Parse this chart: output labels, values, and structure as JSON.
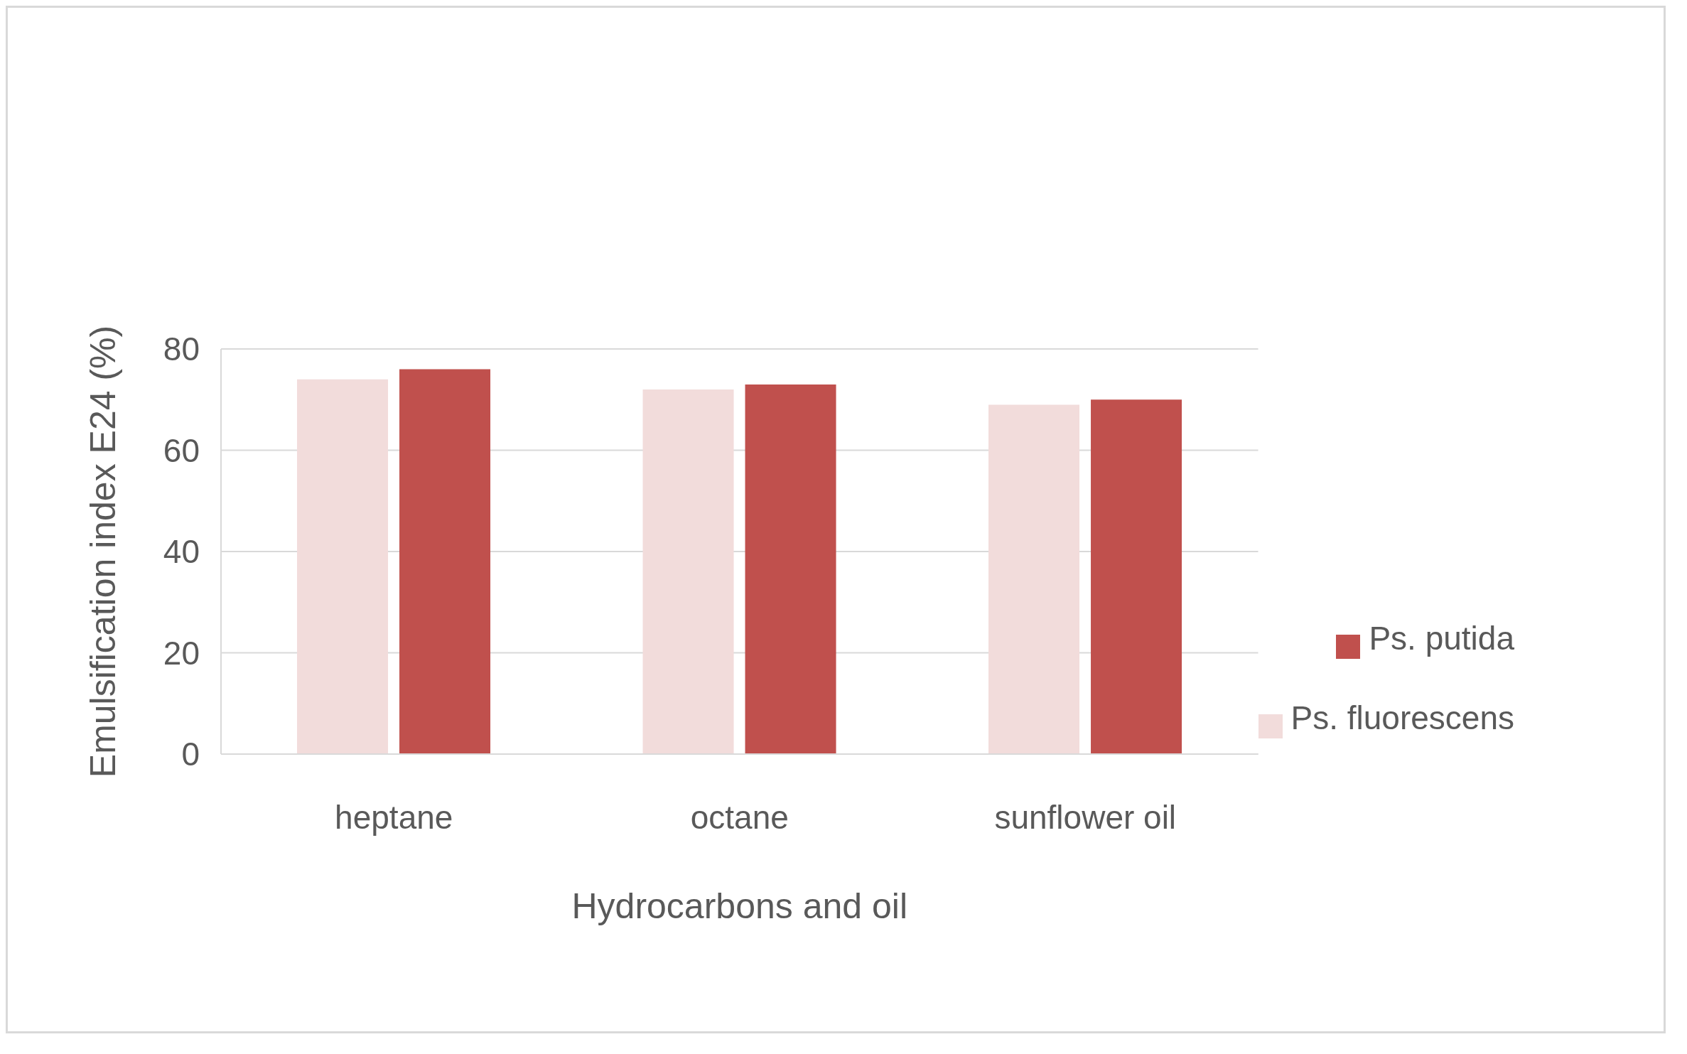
{
  "chart_data": {
    "type": "bar",
    "xlabel": "Hydrocarbons and oil",
    "ylabel": "Emulsification index E24 (%)",
    "categories": [
      "heptane",
      "octane",
      "sunflower oil"
    ],
    "series": [
      {
        "name": "Ps. fluorescens",
        "color": "#f2dcdb",
        "values": [
          74,
          72,
          69
        ]
      },
      {
        "name": "Ps. putida",
        "color": "#c0504d",
        "values": [
          76,
          73,
          70
        ]
      }
    ],
    "ylim": [
      0,
      80
    ],
    "yticks": [
      0,
      20,
      40,
      60,
      80
    ],
    "grid": "y",
    "legend": "right"
  }
}
